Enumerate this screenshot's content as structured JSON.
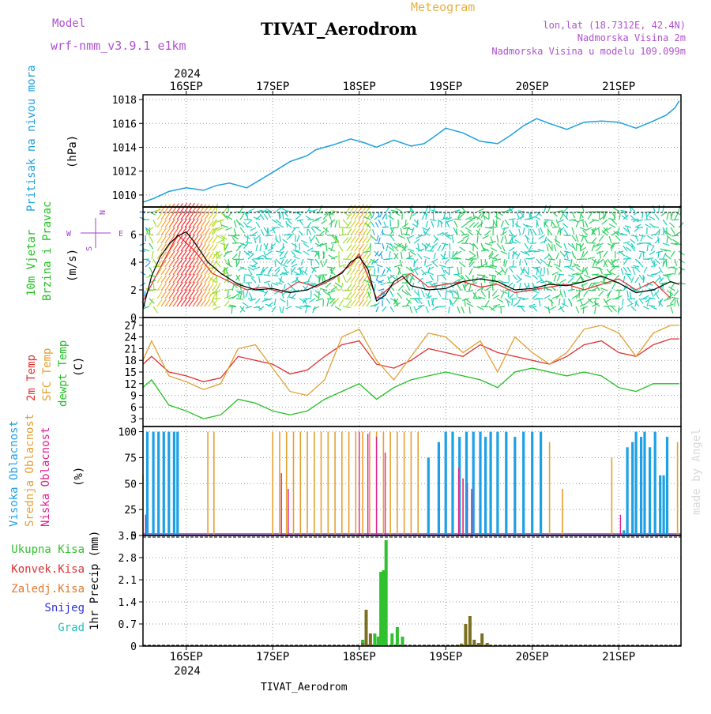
{
  "header": {
    "model_label": "Model",
    "model_name": "wrf-nmm_v3.9.1 e1km",
    "main_title": "TIVAT_Aerodrom",
    "meteogram_label": "Meteogram",
    "lonlat": "lon,lat (18.7312E, 42.4N)",
    "height_station": "Nadmorska Visina 2m",
    "height_model": "Nadmorska Visina u modelu 109.099m",
    "bottom_title": "TIVAT_Aerodrom",
    "year_top": "2024",
    "year_bottom": "2024",
    "watermark": "made by Angel"
  },
  "colors": {
    "pressure": "#1fa0e0",
    "temp2m": "#e03030",
    "sfc_temp": "#e0a030",
    "dewpoint": "#20c020",
    "cloud_high": "#1ea0e6",
    "cloud_mid": "#e6a030",
    "cloud_low": "#e0208c",
    "precip_total": "#30c030",
    "precip_conv": "#e03030",
    "precip_strat": "#e07830",
    "snow": "#3030e0",
    "hail": "#20c0c0",
    "wind_speed": "#000000",
    "wind_gust": "#e03030",
    "wind_legend": "#a040d0",
    "header_purple": "#b050d0",
    "header_orange": "#e8b040"
  },
  "time_axis": {
    "day_labels": [
      "16SEP",
      "17SEP",
      "18SEP",
      "19SEP",
      "20SEP",
      "21SEP"
    ]
  },
  "wind_legend": {
    "w": "W",
    "e": "E",
    "n": "N",
    "s": "S"
  },
  "panels": {
    "pressure": {
      "label1": "Pritisak na nivou mora",
      "unit": "(hPa)"
    },
    "wind": {
      "label1": "10m Vjetar",
      "label2": "Brzina i Pravac",
      "unit": "(m/s)"
    },
    "temp": {
      "label_t2": "2m Temp",
      "label_sfc": "SFC Temp",
      "label_dew": "dewpt Temp",
      "unit": "(C)"
    },
    "cloud": {
      "label_high": "Visoka Oblacnost",
      "label_mid": "Srednja Oblacnost",
      "label_low": "Niska Oblacnost",
      "unit": "(%)"
    },
    "precip": {
      "l_total": "Ukupna Kisa",
      "l_conv": "Konvek.Kisa",
      "l_strat": "Zaledj.Kisa",
      "l_snow": "Snijeg",
      "l_hail": "Grad",
      "unit": "1hr Precip (mm)"
    }
  },
  "chart_data": [
    {
      "type": "line",
      "title": "Pritisak na nivou mora",
      "ylabel": "(hPa)",
      "x_unit": "days since 15SEP2024 00UTC",
      "ylim": [
        1009,
        1018.4
      ],
      "yticks": [
        1010,
        1012,
        1014,
        1016,
        1018
      ],
      "series": [
        {
          "name": "MSLP",
          "x": [
            0.5,
            0.62,
            0.8,
            1,
            1.2,
            1.35,
            1.5,
            1.7,
            2,
            2.2,
            2.4,
            2.5,
            2.7,
            2.9,
            3.05,
            3.2,
            3.4,
            3.6,
            3.75,
            3.85,
            4,
            4.2,
            4.4,
            4.6,
            4.75,
            4.9,
            5.05,
            5.2,
            5.4,
            5.6,
            5.8,
            6,
            6.2,
            6.4,
            6.55,
            6.65,
            6.7
          ],
          "y": [
            1009.4,
            1009.7,
            1010.3,
            1010.6,
            1010.4,
            1010.8,
            1011,
            1010.6,
            1011.9,
            1012.8,
            1013.3,
            1013.8,
            1014.2,
            1014.7,
            1014.4,
            1014.0,
            1014.6,
            1014.1,
            1014.3,
            1014.8,
            1015.6,
            1015.2,
            1014.5,
            1014.3,
            1015.0,
            1015.8,
            1016.4,
            1016.0,
            1015.5,
            1016.1,
            1016.2,
            1016.1,
            1015.6,
            1016.2,
            1016.7,
            1017.3,
            1017.9
          ]
        }
      ]
    },
    {
      "type": "line",
      "title": "10m Vjetar Brzina i Pravac",
      "ylabel": "(m/s)",
      "ylim": [
        0,
        8
      ],
      "yticks": [
        0,
        2,
        4,
        6
      ],
      "series": [
        {
          "name": "speed",
          "x": [
            0.5,
            0.6,
            0.7,
            0.8,
            0.9,
            1.0,
            1.1,
            1.25,
            1.4,
            1.6,
            1.8,
            2.0,
            2.2,
            2.4,
            2.6,
            2.8,
            2.9,
            3.0,
            3.1,
            3.2,
            3.3,
            3.4,
            3.5,
            3.6,
            3.8,
            4.0,
            4.2,
            4.4,
            4.6,
            4.8,
            5.0,
            5.2,
            5.4,
            5.6,
            5.8,
            6.0,
            6.2,
            6.4,
            6.6,
            6.7
          ],
          "y": [
            0.6,
            3.0,
            4.4,
            5.3,
            5.9,
            6.2,
            5.4,
            4.0,
            3.2,
            2.4,
            2.0,
            2.1,
            1.8,
            2.0,
            2.6,
            3.2,
            4.0,
            4.4,
            3.5,
            1.2,
            1.6,
            2.6,
            3.0,
            2.3,
            2.0,
            2.1,
            2.6,
            2.8,
            2.6,
            2.0,
            2.1,
            2.4,
            2.3,
            2.6,
            3.0,
            2.5,
            1.8,
            2.0,
            2.6,
            2.4
          ]
        },
        {
          "name": "gust",
          "x": [
            0.5,
            0.7,
            0.9,
            1.1,
            1.3,
            1.5,
            1.7,
            1.9,
            2.1,
            2.3,
            2.5,
            2.7,
            2.9,
            3.0,
            3.2,
            3.4,
            3.6,
            3.8,
            4.0,
            4.2,
            4.4,
            4.6,
            4.8,
            5.0,
            5.2,
            5.4,
            5.6,
            5.8,
            6.0,
            6.2,
            6.4,
            6.6
          ],
          "y": [
            1.2,
            3.6,
            6.0,
            4.8,
            3.2,
            2.6,
            2.0,
            2.2,
            1.8,
            2.6,
            2.2,
            2.8,
            3.8,
            4.6,
            1.4,
            2.4,
            3.2,
            2.2,
            2.4,
            2.6,
            2.2,
            2.4,
            1.8,
            2.0,
            2.2,
            2.4,
            2.0,
            2.4,
            2.8,
            2.0,
            2.6,
            1.4
          ]
        }
      ]
    },
    {
      "type": "line",
      "title": "2m Temp / SFC Temp / dewpt Temp",
      "ylabel": "(C)",
      "ylim": [
        1,
        29
      ],
      "yticks": [
        3,
        6,
        9,
        12,
        15,
        18,
        21,
        24,
        27
      ],
      "series": [
        {
          "name": "2m Temp",
          "x": [
            0.5,
            0.6,
            0.8,
            1.0,
            1.2,
            1.4,
            1.6,
            1.8,
            2.0,
            2.2,
            2.4,
            2.6,
            2.8,
            3.0,
            3.2,
            3.4,
            3.6,
            3.8,
            4.0,
            4.2,
            4.4,
            4.6,
            4.8,
            5.0,
            5.2,
            5.4,
            5.6,
            5.8,
            6.0,
            6.2,
            6.4,
            6.6,
            6.7
          ],
          "y": [
            17,
            19,
            15,
            14,
            12.5,
            13.5,
            19,
            18,
            17,
            14.5,
            15.5,
            19,
            22,
            23,
            17,
            16,
            18,
            21,
            20,
            19,
            22,
            20,
            19,
            18,
            17,
            19,
            22,
            23,
            20,
            19,
            22,
            23.5,
            23.5
          ]
        },
        {
          "name": "SFC Temp",
          "x": [
            0.5,
            0.6,
            0.8,
            1.0,
            1.2,
            1.4,
            1.6,
            1.8,
            2.0,
            2.2,
            2.4,
            2.6,
            2.8,
            3.0,
            3.2,
            3.4,
            3.6,
            3.8,
            4.0,
            4.2,
            4.4,
            4.6,
            4.8,
            5.0,
            5.2,
            5.4,
            5.6,
            5.8,
            6.0,
            6.2,
            6.4,
            6.6,
            6.7
          ],
          "y": [
            18,
            23,
            14,
            12.5,
            10.5,
            12,
            21,
            22,
            16,
            10,
            9,
            13,
            24,
            26,
            18,
            13,
            19,
            25,
            24,
            20,
            23,
            15,
            24,
            20,
            17,
            20,
            26,
            27,
            25,
            19,
            25,
            27,
            27
          ]
        },
        {
          "name": "dewpt Temp",
          "x": [
            0.5,
            0.6,
            0.8,
            1.0,
            1.2,
            1.4,
            1.6,
            1.8,
            2.0,
            2.2,
            2.4,
            2.6,
            2.8,
            3.0,
            3.2,
            3.4,
            3.6,
            3.8,
            4.0,
            4.2,
            4.4,
            4.6,
            4.8,
            5.0,
            5.2,
            5.4,
            5.6,
            5.8,
            6.0,
            6.2,
            6.4,
            6.6,
            6.7
          ],
          "y": [
            11,
            13,
            6.5,
            5,
            3,
            4,
            8,
            7,
            5,
            4,
            5,
            8,
            10,
            12,
            8,
            11,
            13,
            14,
            15,
            14,
            13,
            11,
            15,
            16,
            15,
            14,
            15,
            14,
            11,
            10,
            12,
            12,
            12
          ]
        }
      ]
    },
    {
      "type": "bar",
      "title": "Visoka / Srednja / Niska Oblacnost",
      "ylabel": "(%)",
      "ylim": [
        0,
        105
      ],
      "yticks": [
        0,
        25,
        50,
        75,
        100
      ],
      "series": [
        {
          "name": "Visoka Oblacnost",
          "values_ref": "cloud high bars by time"
        },
        {
          "name": "Srednja Oblacnost",
          "values_ref": "cloud mid bars by time"
        },
        {
          "name": "Niska Oblacnost",
          "values_ref": "cloud low bars by time"
        }
      ],
      "cloud_high": [
        [
          0.55,
          100
        ],
        [
          0.62,
          100
        ],
        [
          0.68,
          100
        ],
        [
          0.74,
          100
        ],
        [
          0.8,
          100
        ],
        [
          0.86,
          100
        ],
        [
          0.9,
          100
        ],
        [
          3.8,
          75
        ],
        [
          3.92,
          90
        ],
        [
          4.0,
          100
        ],
        [
          4.08,
          100
        ],
        [
          4.16,
          95
        ],
        [
          4.24,
          100
        ],
        [
          4.32,
          100
        ],
        [
          4.4,
          100
        ],
        [
          4.46,
          95
        ],
        [
          4.52,
          100
        ],
        [
          4.6,
          100
        ],
        [
          4.7,
          100
        ],
        [
          4.8,
          95
        ],
        [
          4.9,
          100
        ],
        [
          5.0,
          100
        ],
        [
          5.1,
          100
        ],
        [
          6.06,
          5
        ],
        [
          6.1,
          85
        ],
        [
          6.16,
          90
        ],
        [
          6.2,
          100
        ],
        [
          6.26,
          95
        ],
        [
          6.3,
          100
        ],
        [
          6.36,
          85
        ],
        [
          6.42,
          100
        ],
        [
          6.48,
          58
        ],
        [
          6.52,
          58
        ],
        [
          6.56,
          95
        ]
      ],
      "cloud_mid": [
        [
          0.5,
          58
        ],
        [
          1.25,
          100
        ],
        [
          1.32,
          100
        ],
        [
          2.0,
          100
        ],
        [
          2.08,
          100
        ],
        [
          2.16,
          100
        ],
        [
          2.24,
          100
        ],
        [
          2.32,
          100
        ],
        [
          2.4,
          100
        ],
        [
          2.48,
          100
        ],
        [
          2.56,
          100
        ],
        [
          2.64,
          100
        ],
        [
          2.72,
          100
        ],
        [
          2.8,
          100
        ],
        [
          2.88,
          100
        ],
        [
          2.96,
          100
        ],
        [
          3.04,
          100
        ],
        [
          3.12,
          100
        ],
        [
          3.2,
          100
        ],
        [
          3.28,
          100
        ],
        [
          3.36,
          100
        ],
        [
          3.44,
          100
        ],
        [
          3.52,
          100
        ],
        [
          3.6,
          100
        ],
        [
          3.68,
          100
        ],
        [
          4.2,
          55
        ],
        [
          4.3,
          40
        ],
        [
          5.2,
          90
        ],
        [
          5.35,
          45
        ],
        [
          5.92,
          75
        ],
        [
          6.68,
          90
        ]
      ],
      "cloud_low": [
        [
          0.53,
          20
        ],
        [
          2.1,
          60
        ],
        [
          2.18,
          45
        ],
        [
          3.0,
          100
        ],
        [
          3.1,
          98
        ],
        [
          3.2,
          95
        ],
        [
          3.3,
          80
        ],
        [
          4.15,
          65
        ],
        [
          4.2,
          55
        ],
        [
          4.25,
          50
        ],
        [
          4.3,
          45
        ],
        [
          6.02,
          20
        ]
      ]
    },
    {
      "type": "bar",
      "title": "1hr Precip",
      "ylabel": "1hr Precip (mm)",
      "ylim": [
        0,
        3.5
      ],
      "yticks": [
        0,
        0.7,
        1.4,
        2.1,
        2.8,
        3.5
      ],
      "series": [
        {
          "name": "Ukupna Kisa",
          "x": [
            3.04,
            3.08,
            3.18,
            3.22,
            3.25,
            3.28,
            3.31,
            3.38,
            3.44,
            3.5
          ],
          "values": [
            0.2,
            1.15,
            0.4,
            0.3,
            2.35,
            2.4,
            3.35,
            0.4,
            0.6,
            0.3
          ]
        },
        {
          "name": "Zaledj.Kisa",
          "x": [
            3.04,
            3.08,
            3.13,
            4.18,
            4.23,
            4.28,
            4.33,
            4.38,
            4.42,
            4.48
          ],
          "values": [
            0.1,
            1.15,
            0.4,
            0.08,
            0.7,
            0.95,
            0.2,
            0.1,
            0.4,
            0.1
          ]
        }
      ]
    }
  ]
}
